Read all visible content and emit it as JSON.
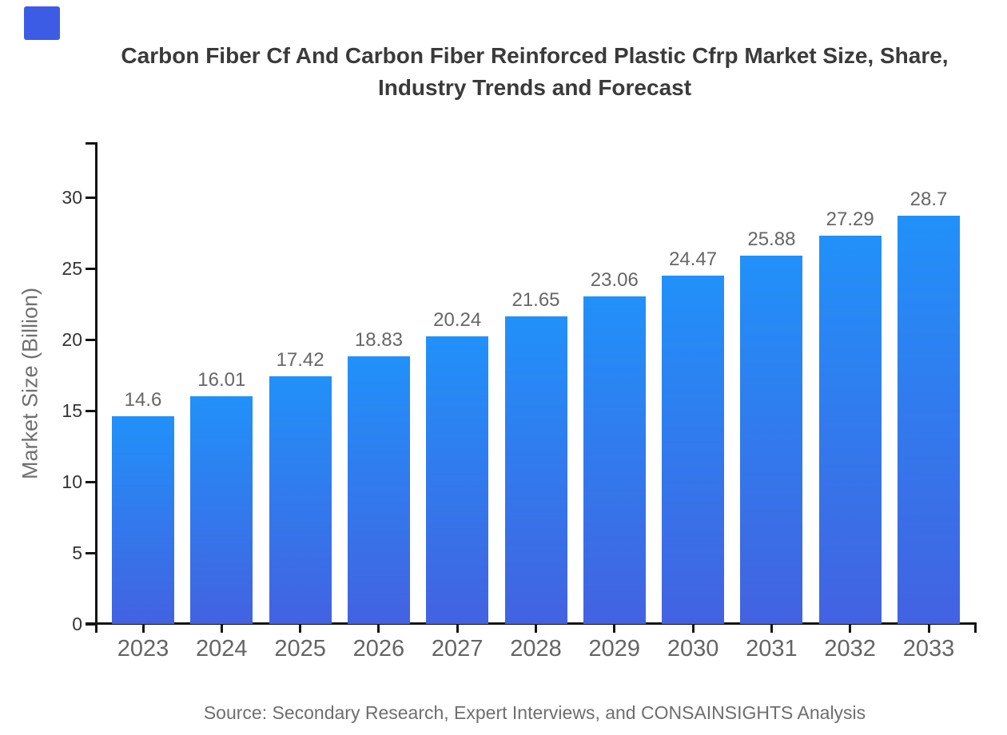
{
  "brand": {
    "logo_color": "#3D5CE5"
  },
  "title": {
    "line1": "Carbon Fiber Cf And Carbon Fiber Reinforced Plastic Cfrp Market Size, Share,",
    "line2": "Industry Trends and Forecast"
  },
  "chart_data": {
    "type": "bar",
    "title": "Carbon Fiber Cf And Carbon Fiber Reinforced Plastic Cfrp Market Size, Share, Industry Trends and Forecast",
    "categories": [
      "2023",
      "2024",
      "2025",
      "2026",
      "2027",
      "2028",
      "2029",
      "2030",
      "2031",
      "2032",
      "2033"
    ],
    "values": [
      14.6,
      16.01,
      17.42,
      18.83,
      20.24,
      21.65,
      23.06,
      24.47,
      25.88,
      27.29,
      28.7
    ],
    "value_labels": [
      "14.6",
      "16.01",
      "17.42",
      "18.83",
      "20.24",
      "21.65",
      "23.06",
      "24.47",
      "25.88",
      "27.29",
      "28.7"
    ],
    "xlabel": "",
    "ylabel": "Market Size (Billion)",
    "y_ticks": [
      0,
      5,
      10,
      15,
      20,
      25,
      30
    ],
    "ylim": [
      0,
      33.9
    ],
    "grid": false,
    "legend": false,
    "bar_color_top": "#2191F9",
    "bar_color_bottom": "#4362E1"
  },
  "footer": {
    "source": "Source: Secondary Research, Expert Interviews, and CONSAINSIGHTS Analysis"
  },
  "colors": {
    "background": "#FFFFFF",
    "title_text": "#3A3A3A",
    "axis": "#141414",
    "ytick_label": "#333333",
    "category_label": "#646464",
    "value_label": "#666666",
    "ylabel_text": "#707070",
    "source_text": "#6E6E6E"
  }
}
